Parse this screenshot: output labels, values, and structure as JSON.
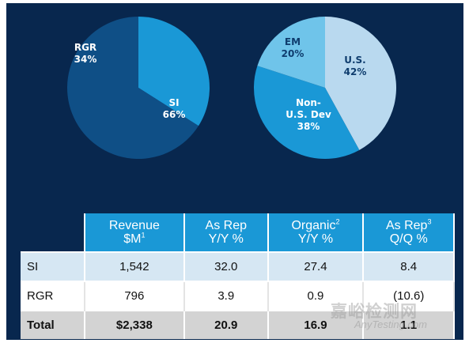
{
  "chart_data": [
    {
      "type": "pie",
      "slices": [
        {
          "label": "RGR",
          "value": 34,
          "value_text": "34%",
          "color": "#1a98d6"
        },
        {
          "label": "SI",
          "value": 66,
          "value_text": "66%",
          "color": "#0f4f86"
        }
      ]
    },
    {
      "type": "pie",
      "slices": [
        {
          "label": "U.S.",
          "value": 42,
          "value_text": "42%",
          "color": "#b9d9ef"
        },
        {
          "label": "Non-U.S. Dev",
          "label_lines": [
            "Non-",
            "U.S. Dev"
          ],
          "value": 38,
          "value_text": "38%",
          "color": "#1a98d6"
        },
        {
          "label": "EM",
          "value": 20,
          "value_text": "20%",
          "color": "#6fc4ea"
        }
      ]
    },
    {
      "type": "table",
      "columns": [
        {
          "line1": "Revenue",
          "line2": "$M",
          "sup": "1"
        },
        {
          "line1": "As Rep",
          "line2": "Y/Y %",
          "sup": ""
        },
        {
          "line1": "Organic",
          "line2": "Y/Y %",
          "sup": "2"
        },
        {
          "line1": "As Rep",
          "line2": "Q/Q %",
          "sup": "3"
        }
      ],
      "rows": [
        {
          "label": "SI",
          "values": [
            "1,542",
            "32.0",
            "27.4",
            "8.4"
          ]
        },
        {
          "label": "RGR",
          "values": [
            "796",
            "3.9",
            "0.9",
            "(10.6)"
          ]
        },
        {
          "label": "Total",
          "values": [
            "$2,338",
            "20.9",
            "16.9",
            "1.1"
          ]
        }
      ]
    }
  ],
  "watermark": {
    "line1": "嘉峪检测网",
    "line2": "AnyTesting.com"
  }
}
